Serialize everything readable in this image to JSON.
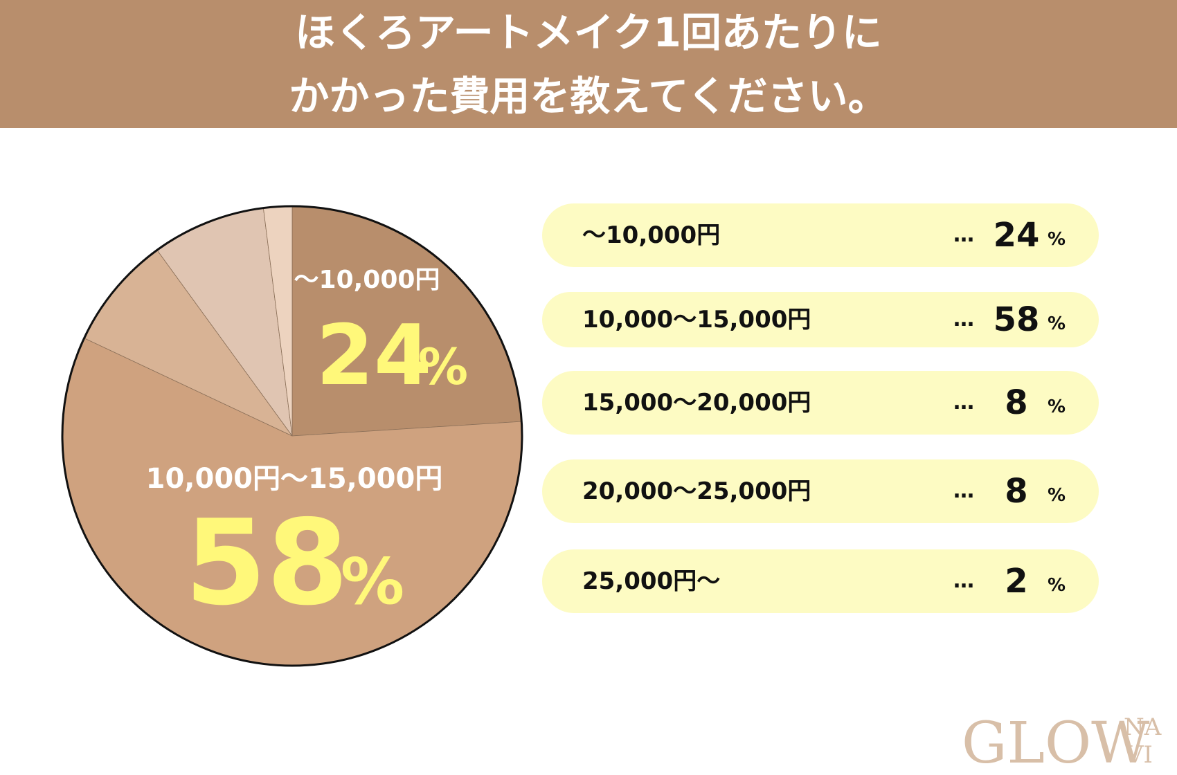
{
  "header": {
    "title_line1": "ほくろアートメイク1回あたりに",
    "title_line2": "かかった費用を教えてください。"
  },
  "chart_data": {
    "type": "pie",
    "categories": [
      "〜10,000円",
      "10,000〜15,000円",
      "15,000〜20,000円",
      "20,000〜25,000円",
      "25,000円〜"
    ],
    "values": [
      24,
      58,
      8,
      8,
      2
    ],
    "unit": "%",
    "colors": [
      "#b88e6c",
      "#cfa27f",
      "#d8b395",
      "#e0c5b2",
      "#edd3bf"
    ],
    "slice_labels": [
      {
        "label": "〜10,000円",
        "value": "24",
        "unit": "%"
      },
      {
        "label": "10,000円〜15,000円",
        "value": "58",
        "unit": "%"
      }
    ],
    "legend": [
      {
        "label": "〜10,000円",
        "dots": "…",
        "value": "24",
        "unit": "%"
      },
      {
        "label": "10,000〜15,000円",
        "dots": "…",
        "value": "58",
        "unit": "%"
      },
      {
        "label": "15,000〜20,000円",
        "dots": "…",
        "value": "8",
        "unit": "%"
      },
      {
        "label": "20,000〜25,000円",
        "dots": "…",
        "value": "8",
        "unit": "%"
      },
      {
        "label": "25,000円〜",
        "dots": "…",
        "value": "2",
        "unit": "%"
      }
    ]
  },
  "logo": {
    "main": "GLOW",
    "sub_top": "NA",
    "sub_bottom": "VI"
  },
  "colors": {
    "banner": "#b88e6c",
    "legend_bg": "#fdfbc3",
    "highlight_text": "#fff87a",
    "logo": "#d8bfa8"
  }
}
